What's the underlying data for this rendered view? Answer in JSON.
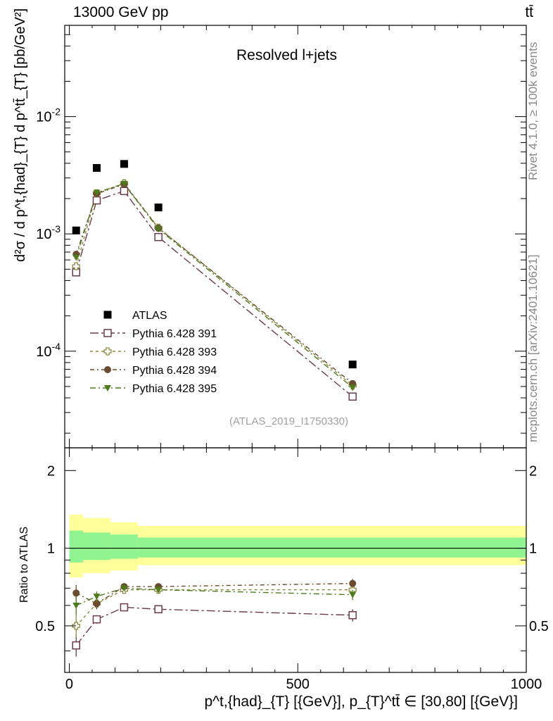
{
  "header": {
    "energy_label": "13000 GeV pp",
    "process_label": "tt̄"
  },
  "main_panel": {
    "title": "Resolved l+jets",
    "y_axis_label": "d²σ / d p^t,{had}_{T} d p^tt̄_{T} [pb/GeV²]",
    "analysis_label": "(ATLAS_2019_I1750330)"
  },
  "ratio_panel": {
    "y_axis_label": "Ratio to ATLAS"
  },
  "side_labels": {
    "rivet": "Rivet 4.1.0, ≥ 100k events",
    "mcplots": "mcplots.cern.ch [arXiv:2401.10621]"
  },
  "x_axis_label": "p^t,{had}_{T} [{GeV}], p_{T}^tt̄ ∈ [30,80] [{GeV}]",
  "colors": {
    "data": "#000000",
    "p391": "#6b3a4c",
    "p393": "#8c8a3e",
    "p394": "#6b4a32",
    "p395": "#4e7a1e",
    "band_inner": "#90f490",
    "band_outer": "#ffff99"
  },
  "chart_data": [
    {
      "type": "scatter",
      "panel": "main",
      "title": "Resolved l+jets",
      "xlabel": "p^t,{had}_{T} [{GeV}], p_{T}^tt̄ ∈ [30,80] [{GeV}]",
      "ylabel": "d²σ / d p^t,{had}_{T} d p^tt̄_{T} [pb/GeV²]",
      "xlim": [
        -10,
        1000
      ],
      "ylim": [
        1.5e-05,
        0.06
      ],
      "yscale": "log",
      "x_ticks": [
        0,
        500,
        1000
      ],
      "y_tick_labels": [
        "10^-4",
        "10^-3",
        "10^-2"
      ],
      "legend_position": "middle-left",
      "series": [
        {
          "name": "ATLAS",
          "style": "square-filled",
          "color": "#000000",
          "x": [
            15,
            60,
            120,
            195,
            620
          ],
          "y": [
            0.00107,
            0.00365,
            0.00395,
            0.00168,
            7.7e-05
          ]
        },
        {
          "name": "Pythia 6.428 391",
          "style": "square-open",
          "color": "#6b3a4c",
          "x": [
            15,
            60,
            120,
            195,
            620
          ],
          "y": [
            0.00047,
            0.00193,
            0.00232,
            0.00094,
            4.1e-05
          ]
        },
        {
          "name": "Pythia 6.428 393",
          "style": "cross-open",
          "color": "#8c8a3e",
          "x": [
            15,
            60,
            120,
            195,
            620
          ],
          "y": [
            0.00053,
            0.00222,
            0.0027,
            0.00113,
            5.1e-05
          ]
        },
        {
          "name": "Pythia 6.428 394",
          "style": "circle-filled",
          "color": "#6b4a32",
          "x": [
            15,
            60,
            120,
            195,
            620
          ],
          "y": [
            0.00067,
            0.0022,
            0.00265,
            0.00112,
            5.3e-05
          ]
        },
        {
          "name": "Pythia 6.428 395",
          "style": "triangle-down-filled",
          "color": "#4e7a1e",
          "x": [
            15,
            60,
            120,
            195,
            620
          ],
          "y": [
            0.00063,
            0.00225,
            0.00268,
            0.0011,
            4.9e-05
          ]
        }
      ]
    },
    {
      "type": "scatter",
      "panel": "ratio",
      "ylabel": "Ratio to ATLAS",
      "xlim": [
        -10,
        1000
      ],
      "ylim": [
        0.33,
        2.45
      ],
      "yscale": "log",
      "y_tick_labels": [
        "0.5",
        "1",
        "2"
      ],
      "reference_line": 1,
      "uncertainty_bands": [
        {
          "x_low": 0,
          "x_high": 30,
          "inner": [
            0.88,
            1.17
          ],
          "outer": [
            0.77,
            1.35
          ]
        },
        {
          "x_low": 30,
          "x_high": 90,
          "inner": [
            0.9,
            1.15
          ],
          "outer": [
            0.8,
            1.31
          ]
        },
        {
          "x_low": 90,
          "x_high": 150,
          "inner": [
            0.91,
            1.13
          ],
          "outer": [
            0.82,
            1.26
          ]
        },
        {
          "x_low": 150,
          "x_high": 1000,
          "inner": [
            0.92,
            1.1
          ],
          "outer": [
            0.86,
            1.22
          ]
        }
      ],
      "series": [
        {
          "name": "Pythia 6.428 391",
          "style": "square-open",
          "color": "#6b3a4c",
          "x": [
            15,
            60,
            120,
            195,
            620
          ],
          "y": [
            0.42,
            0.53,
            0.59,
            0.58,
            0.55
          ],
          "err": [
            0.04,
            0.02,
            0.015,
            0.015,
            0.03
          ]
        },
        {
          "name": "Pythia 6.428 393",
          "style": "cross-open",
          "color": "#8c8a3e",
          "x": [
            15,
            60,
            120,
            195,
            620
          ],
          "y": [
            0.5,
            0.61,
            0.69,
            0.69,
            0.69
          ],
          "err": [
            0.05,
            0.03,
            0.02,
            0.02,
            0.03
          ]
        },
        {
          "name": "Pythia 6.428 394",
          "style": "circle-filled",
          "color": "#6b4a32",
          "x": [
            15,
            60,
            120,
            195,
            620
          ],
          "y": [
            0.67,
            0.61,
            0.71,
            0.71,
            0.73
          ],
          "err": [
            0.05,
            0.03,
            0.02,
            0.02,
            0.03
          ]
        },
        {
          "name": "Pythia 6.428 395",
          "style": "triangle-down-filled",
          "color": "#4e7a1e",
          "x": [
            15,
            60,
            120,
            195,
            620
          ],
          "y": [
            0.6,
            0.65,
            0.7,
            0.69,
            0.66
          ],
          "err": [
            0.05,
            0.03,
            0.02,
            0.02,
            0.03
          ]
        }
      ]
    }
  ]
}
